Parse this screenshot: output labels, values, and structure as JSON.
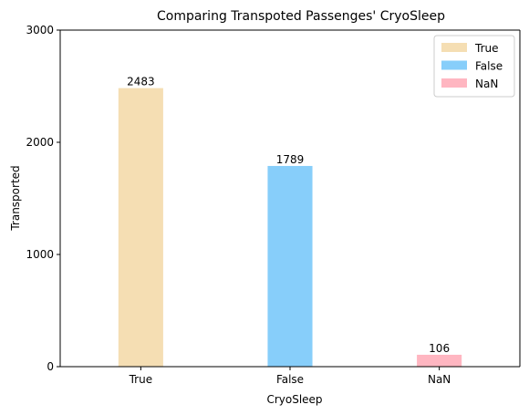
{
  "chart_data": {
    "type": "bar",
    "title": "Comparing Transpoted Passenges' CryoSleep",
    "xlabel": "CryoSleep",
    "ylabel": "Transported",
    "categories": [
      "True",
      "False",
      "NaN"
    ],
    "values": [
      2483,
      1789,
      106
    ],
    "data_labels": [
      "2483",
      "1789",
      "106"
    ],
    "colors": [
      "#f5deb3",
      "#87cefa",
      "#ffb6c1"
    ],
    "ylim": [
      0,
      3000
    ],
    "yticks": [
      0,
      1000,
      2000,
      3000
    ],
    "grid": false,
    "legend": {
      "placement": "top-right",
      "entries": [
        "True",
        "False",
        "NaN"
      ]
    }
  }
}
